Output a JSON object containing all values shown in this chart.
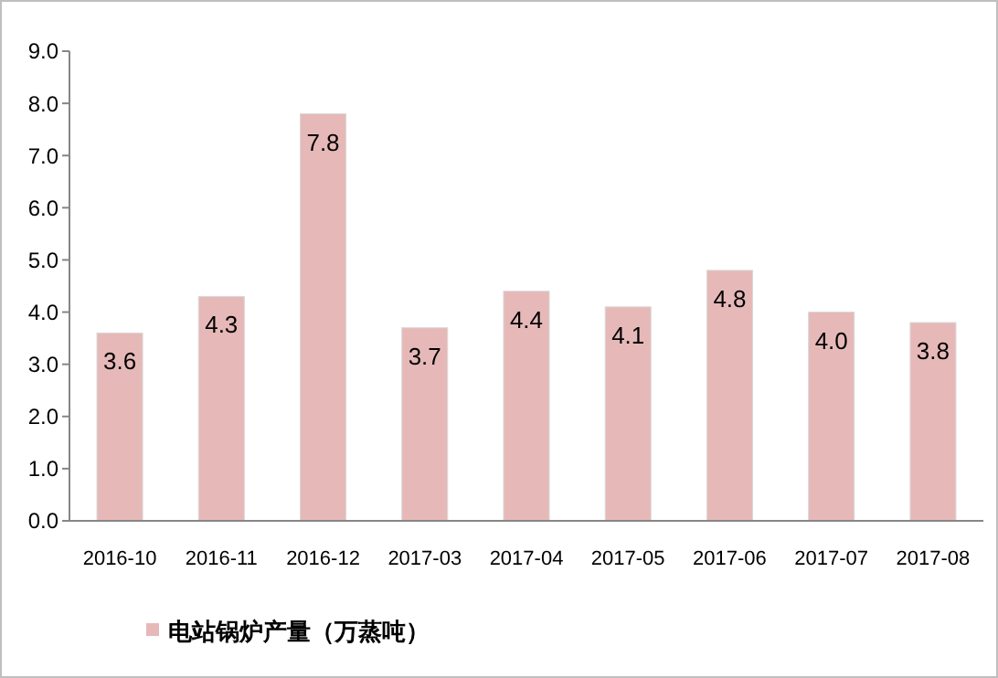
{
  "chart_data": {
    "type": "bar",
    "categories": [
      "2016-10",
      "2016-11",
      "2016-12",
      "2017-03",
      "2017-04",
      "2017-05",
      "2017-06",
      "2017-07",
      "2017-08"
    ],
    "series": [
      {
        "name": "电站锅炉产量（万蒸吨）",
        "color": "#e6b9b8",
        "values": [
          3.6,
          4.3,
          7.8,
          3.7,
          4.4,
          4.1,
          4.8,
          4.0,
          3.8
        ]
      }
    ],
    "value_labels": [
      "3.6",
      "4.3",
      "7.8",
      "3.7",
      "4.4",
      "4.1",
      "4.8",
      "4.0",
      "3.8"
    ],
    "ylim": [
      0,
      9
    ],
    "yticks": [
      {
        "value": 0,
        "label": "0.0"
      },
      {
        "value": 1,
        "label": "1.0"
      },
      {
        "value": 2,
        "label": "2.0"
      },
      {
        "value": 3,
        "label": "3.0"
      },
      {
        "value": 4,
        "label": "4.0"
      },
      {
        "value": 5,
        "label": "5.0"
      },
      {
        "value": 6,
        "label": "6.0"
      },
      {
        "value": 7,
        "label": "7.0"
      },
      {
        "value": 8,
        "label": "8.0"
      },
      {
        "value": 9,
        "label": "9.0"
      }
    ],
    "legend": "bottom"
  }
}
